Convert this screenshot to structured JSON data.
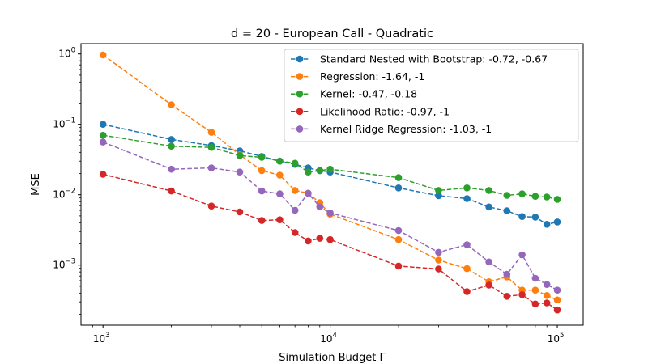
{
  "chart_data": {
    "type": "line",
    "title": "d = 20 - European Call - Quadratic",
    "xlabel": "Simulation Budget Γ",
    "ylabel": "MSE",
    "xscale": "log",
    "yscale": "log",
    "xlim": [
      800,
      130000
    ],
    "ylim": [
      0.00014,
      1.4
    ],
    "x_ticks": [
      {
        "value": 1000,
        "base": "10",
        "exp": "3"
      },
      {
        "value": 10000,
        "base": "10",
        "exp": "4"
      },
      {
        "value": 100000,
        "base": "10",
        "exp": "5"
      }
    ],
    "y_ticks": [
      {
        "value": 0.001,
        "base": "10",
        "exp": "−3"
      },
      {
        "value": 0.01,
        "base": "10",
        "exp": "−2"
      },
      {
        "value": 0.1,
        "base": "10",
        "exp": "−1"
      },
      {
        "value": 1,
        "base": "10",
        "exp": "0"
      }
    ],
    "grid": false,
    "legend_position": "top-right",
    "x": [
      1000,
      2000,
      3000,
      4000,
      5000,
      6000,
      7000,
      8000,
      9000,
      10000,
      20000,
      30000,
      40000,
      50000,
      60000,
      70000,
      80000,
      90000,
      100000
    ],
    "series": [
      {
        "name": "Standard Nested with Bootstrap: -0.72, -0.67",
        "color": "#1f77b4",
        "values": [
          0.1,
          0.061,
          0.05,
          0.042,
          0.035,
          0.03,
          0.027,
          0.024,
          0.022,
          0.021,
          0.0125,
          0.0097,
          0.0088,
          0.0067,
          0.0059,
          0.0049,
          0.0048,
          0.0038,
          0.0041
        ]
      },
      {
        "name": "Regression: -1.64, -1",
        "color": "#ff7f0e",
        "values": [
          0.97,
          0.19,
          0.077,
          0.037,
          0.022,
          0.019,
          0.0115,
          0.0105,
          0.0077,
          0.0053,
          0.0023,
          0.00118,
          0.00089,
          0.00058,
          0.00068,
          0.00044,
          0.00044,
          0.00037,
          0.00032
        ]
      },
      {
        "name": "Kernel: -0.47, -0.18",
        "color": "#2ca02c",
        "values": [
          0.07,
          0.049,
          0.047,
          0.036,
          0.034,
          0.03,
          0.028,
          0.021,
          0.022,
          0.023,
          0.0175,
          0.0115,
          0.0125,
          0.0115,
          0.0098,
          0.0103,
          0.0095,
          0.0093,
          0.0086
        ]
      },
      {
        "name": "Likelihood Ratio: -0.97, -1",
        "color": "#d62728",
        "values": [
          0.0195,
          0.0113,
          0.0069,
          0.0057,
          0.0043,
          0.0044,
          0.0029,
          0.0022,
          0.0024,
          0.0023,
          0.00097,
          0.00088,
          0.00042,
          0.00052,
          0.00036,
          0.00038,
          0.00028,
          0.00029,
          0.00023
        ]
      },
      {
        "name": "Kernel Ridge Regression: -1.03, -1",
        "color": "#9467bd",
        "values": [
          0.056,
          0.023,
          0.024,
          0.021,
          0.0113,
          0.0103,
          0.006,
          0.0105,
          0.0067,
          0.0055,
          0.0031,
          0.00152,
          0.00195,
          0.00111,
          0.00074,
          0.0014,
          0.00065,
          0.00053,
          0.00044
        ]
      }
    ]
  }
}
